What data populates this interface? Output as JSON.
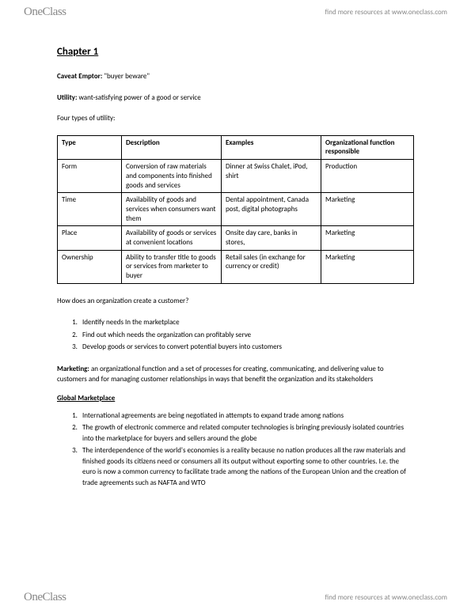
{
  "brand": {
    "part1": "One",
    "part2": "Class"
  },
  "tagline_prefix": "find more resources at ",
  "tagline_url": "www.oneclass.com",
  "chapter_title": "Chapter 1",
  "caveat_label": "Caveat Emptor:",
  "caveat_value": " \"buyer beware\"",
  "utility_label": "Utility:",
  "utility_value": " want-satisfying power of a good or service",
  "four_types": "Four types of utility:",
  "table": {
    "headers": [
      "Type",
      "Description",
      "Examples",
      "Organizational function responsible"
    ],
    "rows": [
      [
        "Form",
        "Conversion of raw materials and components into finished goods and services",
        "Dinner at Swiss Chalet, iPod, shirt",
        "Production"
      ],
      [
        "Time",
        "Availability of goods and services when consumers want them",
        "Dental appointment, Canada post, digital photographs",
        "Marketing"
      ],
      [
        "Place",
        "Availability of goods or services at convenient locations",
        "Onsite day care, banks in stores,",
        "Marketing"
      ],
      [
        "Ownership",
        "Ability to transfer title to goods or services from marketer to buyer",
        "Retail sales (in exchange for currency or credit)",
        "Marketing"
      ]
    ]
  },
  "q1": "How does an organization create a customer?",
  "list1": [
    "Identify needs In the marketplace",
    "Find out which needs the organization can profitably serve",
    "Develop goods or services to convert potential buyers into customers"
  ],
  "marketing_label": "Marketing:",
  "marketing_value": " an organizational function and a set of processes for creating, communicating, and delivering value to customers and for managing customer relationships in ways that benefit the organization and its stakeholders",
  "global_title": "Global Marketplace",
  "list2": [
    "International agreements are being negotiated in attempts to expand trade among nations",
    "The growth of electronic commerce and related computer technologies is bringing previously isolated countries into the marketplace for buyers and sellers around the globe",
    "The interdependence of the world's economies is a reality because no nation produces all the raw materials and finished goods its citizens need or consumers all its output without exporting some to other countries.  I.e. the euro is now a common currency to facilitate trade among the nations of the European Union and the creation of trade agreements such as NAFTA and WTO"
  ]
}
